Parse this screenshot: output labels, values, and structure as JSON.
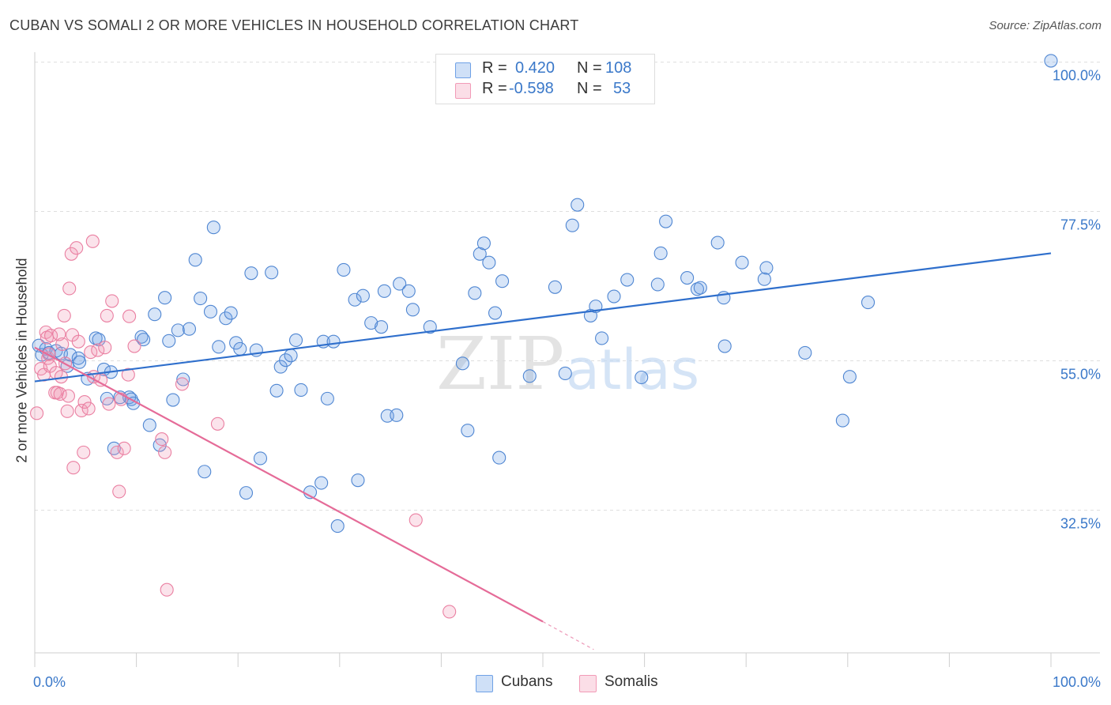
{
  "title": "CUBAN VS SOMALI 2 OR MORE VEHICLES IN HOUSEHOLD CORRELATION CHART",
  "source": "Source: ZipAtlas.com",
  "watermark": {
    "zip": "ZIP",
    "atlas": "atlas"
  },
  "legend": {
    "rows": [
      {
        "r_label": "R =",
        "r_value": "0.420",
        "n_label": "N =",
        "n_value": "108",
        "color": "#6fa1e6"
      },
      {
        "r_label": "R =",
        "r_value": "-0.598",
        "n_label": "N =",
        "n_value": "53",
        "color": "#f29bb7"
      }
    ]
  },
  "bottom_legend": [
    {
      "label": "Cubans",
      "color": "#6fa1e6"
    },
    {
      "label": "Somalis",
      "color": "#f29bb7"
    }
  ],
  "chart_data": {
    "type": "scatter",
    "title": "CUBAN VS SOMALI 2 OR MORE VEHICLES IN HOUSEHOLD CORRELATION CHART",
    "xlabel": "",
    "ylabel": "2 or more Vehicles in Household",
    "xlim": [
      0,
      100
    ],
    "ylim": [
      11.0,
      101.5
    ],
    "x_tick_labels": [
      "0.0%",
      "100.0%"
    ],
    "y_ticks": [
      {
        "value": 100.0,
        "label": "100.0%"
      },
      {
        "value": 77.5,
        "label": "77.5%"
      },
      {
        "value": 55.0,
        "label": "55.0%"
      },
      {
        "value": 32.5,
        "label": "32.5%"
      }
    ],
    "grid": true,
    "series": [
      {
        "name": "Cubans",
        "color": "#6fa1e6",
        "stroke": "#4f86d2",
        "trend": {
          "x": [
            0,
            100
          ],
          "y": [
            51.9,
            71.2
          ],
          "color": "#2f6fcc"
        },
        "points": [
          [
            0.4,
            57.3
          ],
          [
            0.7,
            55.9
          ],
          [
            1.1,
            56.8
          ],
          [
            1.4,
            56.2
          ],
          [
            2.1,
            56.5
          ],
          [
            2.6,
            56.1
          ],
          [
            3.2,
            54.2
          ],
          [
            3.5,
            55.9
          ],
          [
            4.3,
            55.4
          ],
          [
            4.4,
            54.8
          ],
          [
            5.2,
            52.3
          ],
          [
            6.0,
            58.4
          ],
          [
            6.3,
            58.2
          ],
          [
            6.8,
            53.7
          ],
          [
            7.1,
            49.3
          ],
          [
            7.5,
            53.3
          ],
          [
            7.8,
            41.8
          ],
          [
            8.4,
            49.5
          ],
          [
            9.3,
            49.5
          ],
          [
            9.5,
            49.2
          ],
          [
            9.7,
            48.6
          ],
          [
            10.5,
            58.6
          ],
          [
            10.7,
            58.2
          ],
          [
            11.3,
            45.3
          ],
          [
            11.8,
            62.0
          ],
          [
            12.3,
            42.3
          ],
          [
            12.8,
            64.5
          ],
          [
            13.2,
            58.0
          ],
          [
            13.6,
            49.1
          ],
          [
            14.1,
            59.6
          ],
          [
            14.6,
            52.2
          ],
          [
            15.2,
            59.8
          ],
          [
            15.8,
            70.2
          ],
          [
            16.3,
            64.4
          ],
          [
            16.7,
            38.3
          ],
          [
            17.3,
            62.4
          ],
          [
            17.6,
            75.1
          ],
          [
            18.1,
            57.1
          ],
          [
            18.8,
            61.4
          ],
          [
            19.3,
            62.2
          ],
          [
            19.8,
            57.7
          ],
          [
            20.2,
            56.8
          ],
          [
            20.8,
            35.1
          ],
          [
            21.3,
            68.2
          ],
          [
            21.8,
            56.6
          ],
          [
            22.2,
            40.3
          ],
          [
            23.3,
            68.3
          ],
          [
            23.8,
            50.5
          ],
          [
            24.2,
            54.1
          ],
          [
            24.7,
            55.1
          ],
          [
            25.2,
            55.8
          ],
          [
            25.7,
            58.1
          ],
          [
            26.2,
            50.6
          ],
          [
            27.1,
            35.2
          ],
          [
            28.2,
            36.6
          ],
          [
            28.4,
            57.9
          ],
          [
            28.8,
            49.3
          ],
          [
            29.4,
            57.9
          ],
          [
            29.8,
            30.1
          ],
          [
            30.4,
            68.7
          ],
          [
            31.5,
            64.2
          ],
          [
            31.8,
            37.0
          ],
          [
            32.3,
            64.8
          ],
          [
            33.1,
            60.7
          ],
          [
            34.1,
            60.1
          ],
          [
            34.4,
            65.5
          ],
          [
            34.7,
            46.7
          ],
          [
            35.6,
            46.8
          ],
          [
            35.9,
            66.6
          ],
          [
            36.8,
            65.5
          ],
          [
            37.2,
            62.7
          ],
          [
            38.9,
            60.1
          ],
          [
            42.1,
            54.6
          ],
          [
            42.6,
            44.5
          ],
          [
            43.3,
            65.2
          ],
          [
            43.8,
            71.1
          ],
          [
            44.2,
            72.7
          ],
          [
            44.7,
            69.8
          ],
          [
            45.3,
            62.2
          ],
          [
            45.7,
            40.4
          ],
          [
            46.0,
            67.0
          ],
          [
            48.7,
            52.7
          ],
          [
            51.2,
            66.1
          ],
          [
            52.2,
            53.1
          ],
          [
            52.9,
            75.4
          ],
          [
            53.4,
            78.5
          ],
          [
            54.7,
            61.8
          ],
          [
            55.2,
            63.2
          ],
          [
            55.8,
            58.4
          ],
          [
            57.0,
            64.7
          ],
          [
            58.3,
            67.2
          ],
          [
            59.7,
            52.5
          ],
          [
            61.3,
            66.5
          ],
          [
            61.6,
            71.2
          ],
          [
            62.1,
            76.0
          ],
          [
            64.2,
            67.5
          ],
          [
            65.2,
            65.8
          ],
          [
            65.5,
            66.0
          ],
          [
            67.2,
            72.8
          ],
          [
            67.8,
            64.5
          ],
          [
            67.9,
            57.2
          ],
          [
            69.6,
            69.8
          ],
          [
            71.8,
            67.3
          ],
          [
            72.0,
            69.0
          ],
          [
            75.8,
            56.2
          ],
          [
            79.5,
            46.0
          ],
          [
            80.2,
            52.6
          ],
          [
            82.0,
            63.8
          ],
          [
            100.0,
            100.2
          ]
        ]
      },
      {
        "name": "Somalis",
        "color": "#f29bb7",
        "stroke": "#ea7fa1",
        "trend": {
          "x": [
            0,
            50
          ],
          "y": [
            57.0,
            15.7
          ],
          "color": "#e56b98",
          "dashed_extension": [
            50,
            55,
            15.7,
            11.5
          ]
        },
        "points": [
          [
            0.2,
            47.1
          ],
          [
            0.6,
            53.8
          ],
          [
            0.9,
            52.9
          ],
          [
            1.1,
            59.3
          ],
          [
            1.2,
            58.5
          ],
          [
            1.3,
            55.4
          ],
          [
            1.5,
            54.2
          ],
          [
            1.6,
            58.8
          ],
          [
            2.0,
            50.2
          ],
          [
            2.1,
            53.2
          ],
          [
            2.2,
            50.2
          ],
          [
            2.4,
            59.0
          ],
          [
            2.5,
            50.0
          ],
          [
            2.6,
            52.6
          ],
          [
            2.9,
            61.8
          ],
          [
            3.2,
            47.4
          ],
          [
            3.3,
            49.7
          ],
          [
            3.4,
            65.9
          ],
          [
            3.6,
            71.1
          ],
          [
            3.7,
            58.9
          ],
          [
            3.8,
            38.9
          ],
          [
            4.1,
            72.0
          ],
          [
            4.3,
            57.9
          ],
          [
            4.6,
            47.5
          ],
          [
            4.8,
            41.2
          ],
          [
            4.9,
            48.8
          ],
          [
            5.3,
            47.8
          ],
          [
            5.5,
            56.3
          ],
          [
            5.7,
            73.0
          ],
          [
            5.8,
            52.6
          ],
          [
            6.2,
            56.6
          ],
          [
            6.5,
            52.1
          ],
          [
            6.9,
            57.0
          ],
          [
            7.1,
            61.8
          ],
          [
            7.3,
            48.5
          ],
          [
            7.6,
            64.0
          ],
          [
            8.1,
            41.2
          ],
          [
            8.3,
            35.3
          ],
          [
            8.5,
            49.2
          ],
          [
            8.8,
            41.8
          ],
          [
            9.2,
            52.9
          ],
          [
            9.3,
            61.7
          ],
          [
            9.8,
            57.2
          ],
          [
            12.5,
            43.2
          ],
          [
            12.8,
            41.2
          ],
          [
            13.0,
            20.5
          ],
          [
            14.5,
            51.5
          ],
          [
            18.0,
            45.5
          ],
          [
            37.5,
            31.0
          ],
          [
            40.8,
            17.2
          ],
          [
            1.4,
            56.0
          ],
          [
            2.7,
            57.5
          ],
          [
            3.0,
            54.6
          ]
        ]
      }
    ]
  }
}
